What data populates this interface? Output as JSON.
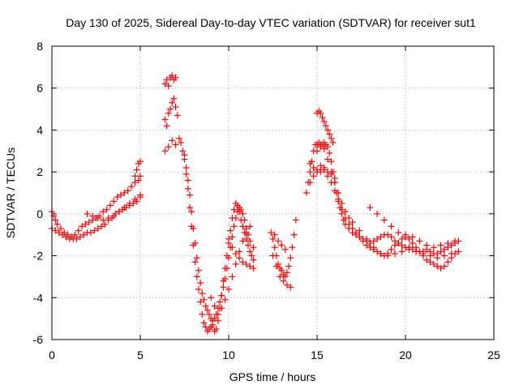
{
  "chart_data": {
    "type": "scatter",
    "title": "Day 130 of 2025, Sidereal Day-to-day VTEC variation (SDTVAR) for receiver sut1",
    "xlabel": "GPS time / hours",
    "ylabel": "SDTVAR / TECUs",
    "xlim": [
      0,
      25
    ],
    "ylim": [
      -6,
      8
    ],
    "xticks": [
      0,
      5,
      10,
      15,
      20,
      25
    ],
    "yticks": [
      -6,
      -4,
      -2,
      0,
      2,
      4,
      6,
      8
    ],
    "grid": true,
    "marker": "plus",
    "color": "#ff0000",
    "series": [
      {
        "name": "sut1",
        "x": [
          0.0,
          0.1,
          0.2,
          0.3,
          0.5,
          0.7,
          0.9,
          1.1,
          1.3,
          1.5,
          1.7,
          1.9,
          2.1,
          2.3,
          2.5,
          2.7,
          2.9,
          3.1,
          3.3,
          3.5,
          3.7,
          3.9,
          4.1,
          4.3,
          4.5,
          4.7,
          4.9,
          5.0,
          0.0,
          0.2,
          0.4,
          0.6,
          0.8,
          1.0,
          1.2,
          1.4,
          1.6,
          1.8,
          2.0,
          2.2,
          2.4,
          2.6,
          2.8,
          3.0,
          3.2,
          3.4,
          3.6,
          3.8,
          4.0,
          4.2,
          4.4,
          4.6,
          4.8,
          5.0,
          2.0,
          2.3,
          2.6,
          2.9,
          3.2,
          3.5,
          3.8,
          4.1,
          4.4,
          4.7,
          5.0,
          4.7,
          4.8,
          4.9,
          5.0,
          6.4,
          6.5,
          6.6,
          6.7,
          6.8,
          6.9,
          7.0,
          6.4,
          6.5,
          6.6,
          6.7,
          6.8,
          6.9,
          7.0,
          7.1,
          6.4,
          6.6,
          6.8,
          7.0,
          7.2,
          7.3,
          7.4,
          7.5,
          7.6,
          7.7,
          7.8,
          7.9,
          8.0,
          8.1,
          8.2,
          8.3,
          8.4,
          8.5,
          8.6,
          8.7,
          8.8,
          8.9,
          9.0,
          9.1,
          9.2,
          9.3,
          9.4,
          9.5,
          9.6,
          9.7,
          9.8,
          9.9,
          10.0,
          10.1,
          10.2,
          10.3,
          10.4,
          10.5,
          10.6,
          10.7,
          10.8,
          10.9,
          11.0,
          11.1,
          11.2,
          11.3,
          11.4,
          7.5,
          7.6,
          7.7,
          7.8,
          7.9,
          8.0,
          8.1,
          8.2,
          8.3,
          8.4,
          8.5,
          8.6,
          8.7,
          8.8,
          8.9,
          9.0,
          9.1,
          9.2,
          9.3,
          9.4,
          9.5,
          9.6,
          9.7,
          9.8,
          9.9,
          10.0,
          10.1,
          10.2,
          10.3,
          10.4,
          10.5,
          10.6,
          10.7,
          10.8,
          10.9,
          11.0,
          11.1,
          11.2,
          11.4,
          9.0,
          9.2,
          9.4,
          9.6,
          9.8,
          10.0,
          10.2,
          10.4,
          10.6,
          10.8,
          11.0,
          11.2,
          10.0,
          10.2,
          10.4,
          10.6,
          10.8,
          11.0,
          11.2,
          11.4,
          12.4,
          12.5,
          12.6,
          12.7,
          12.8,
          12.9,
          13.0,
          13.1,
          13.2,
          13.3,
          13.4,
          13.5,
          13.6,
          13.7,
          13.8,
          12.5,
          12.7,
          12.9,
          13.1,
          13.3,
          13.5,
          12.6,
          12.8,
          13.0,
          13.2,
          14.4,
          14.5,
          14.6,
          14.7,
          14.8,
          14.9,
          15.0,
          15.1,
          15.2,
          15.3,
          15.4,
          15.5,
          15.6,
          15.7,
          15.8,
          15.9,
          16.0,
          16.1,
          16.2,
          16.3,
          16.4,
          16.5,
          16.6,
          16.8,
          17.0,
          17.2,
          17.4,
          17.6,
          17.8,
          18.0,
          18.2,
          18.4,
          18.6,
          18.8,
          19.0,
          19.2,
          19.4,
          19.6,
          19.8,
          20.0,
          20.2,
          20.4,
          20.6,
          20.8,
          21.0,
          21.2,
          21.4,
          21.6,
          21.8,
          22.0,
          22.2,
          22.4,
          22.6,
          22.8,
          23.0,
          14.6,
          14.8,
          15.0,
          15.2,
          15.4,
          15.6,
          15.8,
          16.0,
          16.2,
          16.4,
          16.6,
          16.8,
          17.0,
          17.2,
          17.4,
          17.6,
          17.8,
          18.0,
          18.2,
          18.4,
          18.6,
          18.8,
          19.0,
          19.2,
          19.4,
          19.6,
          19.8,
          20.0,
          20.2,
          20.4,
          20.6,
          20.8,
          21.0,
          21.2,
          21.4,
          21.6,
          21.8,
          22.0,
          22.2,
          22.4,
          22.6,
          22.8,
          15.0,
          15.2,
          15.4,
          15.6,
          15.8,
          16.0,
          16.2,
          16.4,
          16.6,
          16.8,
          17.0,
          17.4,
          17.8,
          18.2,
          18.6,
          19.0,
          19.4,
          19.8,
          20.2,
          20.6,
          21.0,
          21.4,
          21.8,
          22.2,
          22.6,
          23.0,
          15.0,
          15.1,
          15.2,
          15.3,
          15.4,
          15.5,
          15.6,
          15.7,
          15.8,
          15.9,
          18.0,
          18.4,
          18.8,
          19.2,
          19.6,
          20.0,
          20.4,
          20.8,
          21.2,
          21.6,
          22.0,
          22.4,
          22.8,
          14.6,
          14.8,
          15.0,
          15.2,
          15.4,
          15.6,
          15.8,
          16.0
        ],
        "y": [
          0.1,
          -0.1,
          -0.3,
          -0.5,
          -0.7,
          -0.9,
          -1.0,
          -1.1,
          -1.0,
          -0.8,
          -0.6,
          -0.5,
          -0.4,
          -0.3,
          -0.2,
          -0.1,
          0.1,
          0.2,
          0.4,
          0.6,
          0.8,
          0.9,
          1.0,
          1.1,
          1.3,
          1.5,
          1.6,
          1.8,
          -0.7,
          -0.8,
          -0.9,
          -1.0,
          -1.1,
          -1.2,
          -1.2,
          -1.2,
          -1.1,
          -1.0,
          -0.9,
          -0.9,
          -0.8,
          -0.7,
          -0.6,
          -0.5,
          -0.3,
          -0.2,
          0.0,
          0.1,
          0.2,
          0.3,
          0.4,
          0.5,
          0.6,
          0.8,
          0.0,
          -0.1,
          -0.2,
          -0.3,
          -0.2,
          -0.1,
          0.1,
          0.3,
          0.5,
          0.7,
          0.9,
          1.8,
          2.1,
          2.4,
          2.5,
          6.2,
          6.4,
          6.1,
          6.5,
          6.6,
          6.4,
          6.5,
          4.5,
          4.2,
          4.8,
          5.0,
          5.3,
          5.5,
          5.1,
          4.7,
          3.0,
          3.2,
          3.5,
          3.3,
          3.6,
          3.4,
          3.0,
          2.6,
          1.9,
          1.2,
          0.3,
          -0.6,
          -1.5,
          -2.3,
          -3.0,
          -3.6,
          -4.2,
          -4.8,
          -5.2,
          -5.4,
          -5.6,
          -5.5,
          -5.4,
          -5.3,
          -5.6,
          -5.5,
          -5.1,
          -4.5,
          -3.9,
          -3.2,
          -2.6,
          -2.0,
          -1.4,
          -0.8,
          -0.2,
          0.2,
          0.5,
          0.4,
          0.1,
          -0.3,
          -0.6,
          -0.9,
          -1.2,
          -1.5,
          -1.8,
          -2.0,
          -2.2,
          2.8,
          2.2,
          1.6,
          0.9,
          0.1,
          -0.7,
          -1.4,
          -2.1,
          -2.7,
          -3.3,
          -3.8,
          -4.1,
          -4.4,
          -4.6,
          -4.8,
          -5.0,
          -5.1,
          -5.0,
          -4.8,
          -4.5,
          -4.2,
          -3.9,
          -3.5,
          -3.1,
          -2.6,
          -2.1,
          -1.6,
          -1.1,
          -0.6,
          -0.2,
          0.1,
          0.3,
          0.2,
          0.0,
          -0.3,
          -0.7,
          -1.0,
          -1.3,
          -1.6,
          -4.0,
          -4.4,
          -4.8,
          -4.5,
          -4.1,
          -3.6,
          -3.0,
          -2.4,
          -1.8,
          -1.3,
          -0.9,
          -0.6,
          -1.2,
          -1.6,
          -1.9,
          -2.1,
          -2.3,
          -2.4,
          -2.5,
          -2.6,
          -0.9,
          -1.2,
          -1.6,
          -2.0,
          -2.4,
          -2.6,
          -2.7,
          -2.9,
          -3.0,
          -2.8,
          -2.5,
          -2.1,
          -1.6,
          -1.0,
          -0.3,
          -2.0,
          -2.5,
          -3.0,
          -3.2,
          -3.4,
          -3.5,
          -1.0,
          -1.3,
          -1.5,
          -1.7,
          1.0,
          1.5,
          2.0,
          2.5,
          3.0,
          3.3,
          3.3,
          3.4,
          3.2,
          3.3,
          3.4,
          3.3,
          3.2,
          2.9,
          2.5,
          2.0,
          1.5,
          1.0,
          0.6,
          0.3,
          0.0,
          -0.3,
          -0.5,
          -0.7,
          -0.9,
          -1.0,
          -1.1,
          -1.2,
          -1.3,
          -1.4,
          -1.3,
          -1.2,
          -1.1,
          -1.0,
          -1.0,
          -1.1,
          -1.3,
          -1.4,
          -1.5,
          -1.6,
          -1.6,
          -1.7,
          -1.8,
          -1.8,
          -1.8,
          -1.7,
          -1.8,
          -1.9,
          -1.9,
          -1.8,
          -1.7,
          -1.6,
          -1.5,
          -1.4,
          -1.3,
          2.4,
          2.2,
          2.0,
          2.0,
          2.1,
          1.8,
          1.5,
          1.1,
          0.7,
          0.2,
          -0.2,
          -0.5,
          -0.7,
          -0.9,
          -1.1,
          -1.3,
          -1.5,
          -1.6,
          -1.7,
          -1.8,
          -1.9,
          -2.0,
          -1.9,
          -1.7,
          -1.5,
          -1.4,
          -1.2,
          -1.1,
          -1.2,
          -1.4,
          -1.6,
          -1.8,
          -2.0,
          -2.2,
          -2.3,
          -2.4,
          -2.5,
          -2.6,
          -2.5,
          -2.3,
          -2.1,
          -1.9,
          3.0,
          3.3,
          3.1,
          2.6,
          2.0,
          1.5,
          1.0,
          0.5,
          0.1,
          -0.2,
          -0.4,
          -0.8,
          -1.2,
          -1.6,
          -1.9,
          -2.0,
          -1.9,
          -1.8,
          -1.7,
          -1.8,
          -1.9,
          -2.0,
          -2.1,
          -2.0,
          -1.9,
          -1.8,
          4.8,
          4.9,
          4.8,
          4.6,
          4.4,
          4.2,
          4.0,
          3.8,
          3.6,
          3.4,
          0.3,
          0.0,
          -0.3,
          -0.6,
          -0.9,
          -1.0,
          -1.1,
          -1.3,
          -1.5,
          -1.6,
          -1.5,
          -1.4,
          -1.3,
          1.5,
          1.8,
          2.1,
          2.3,
          2.2,
          2.0,
          1.9,
          1.7
        ]
      }
    ]
  }
}
